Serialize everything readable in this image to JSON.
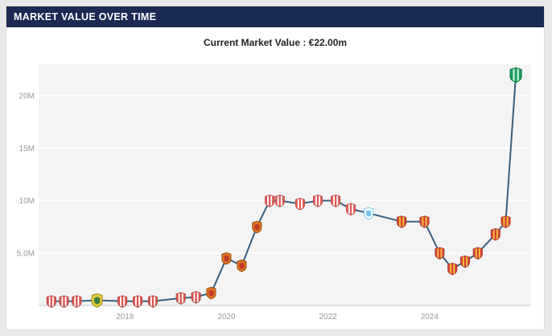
{
  "header": {
    "title": "MARKET VALUE OVER TIME"
  },
  "subtitle": {
    "text": "Current Market Value : €22.00m"
  },
  "colors": {
    "page_bg": "#e9e9e9",
    "panel_bg": "#ffffff",
    "panel_border": "#d9d9d9",
    "header_bg": "#1a2a52",
    "header_text": "#ffffff",
    "subtitle_text": "#222222",
    "tick_text": "#999999",
    "axis_line": "#cbcbcb"
  },
  "chart_data": {
    "type": "line",
    "title": "Market Value Over Time",
    "xlabel": "",
    "ylabel": "",
    "grid": true,
    "legend": "none",
    "xlim": [
      2016.3,
      2026.0
    ],
    "ylim": [
      0,
      23
    ],
    "plot_bg": "#f4f4f4",
    "grid_color": "#ffffff",
    "line_color": "#3a5f7d",
    "y_ticks": [
      {
        "value": 5,
        "label": "5.0M"
      },
      {
        "value": 10,
        "label": "10M"
      },
      {
        "value": 15,
        "label": "15M"
      },
      {
        "value": 20,
        "label": "20M"
      }
    ],
    "x_ticks": [
      {
        "value": 2018,
        "label": "2018"
      },
      {
        "value": 2020,
        "label": "2020"
      },
      {
        "value": 2022,
        "label": "2022"
      },
      {
        "value": 2024,
        "label": "2024"
      }
    ],
    "badge_styles": {
      "sporting": {
        "style": "stripes",
        "primary": "#d9534f",
        "secondary": "#ffffff",
        "outline": "#b54a46"
      },
      "yellow": {
        "style": "solid",
        "primary": "#e7cb3a",
        "secondary": "#3a7d44",
        "outline": "#9b8a20"
      },
      "orange": {
        "style": "solid",
        "primary": "#e0731f",
        "secondary": "#c03a2b",
        "outline": "#8f4a12"
      },
      "red": {
        "style": "stripes",
        "primary": "#e05a55",
        "secondary": "#ffffff",
        "outline": "#c04a46"
      },
      "om": {
        "style": "solid",
        "primary": "#ffffff",
        "secondary": "#6fc3ea",
        "outline": "#6fc3ea"
      },
      "almeria": {
        "style": "stripes",
        "primary": "#d8403c",
        "secondary": "#f2c235",
        "outline": "#a83a30"
      },
      "green": {
        "style": "stripes",
        "primary": "#18a05e",
        "secondary": "#bfe8d2",
        "outline": "#0f7a46"
      }
    },
    "points": [
      {
        "x": 2016.55,
        "value": 0.4,
        "club": "sporting"
      },
      {
        "x": 2016.8,
        "value": 0.4,
        "club": "sporting"
      },
      {
        "x": 2017.05,
        "value": 0.4,
        "club": "sporting"
      },
      {
        "x": 2017.45,
        "value": 0.5,
        "club": "yellow",
        "size": 1.15
      },
      {
        "x": 2017.95,
        "value": 0.4,
        "club": "sporting"
      },
      {
        "x": 2018.25,
        "value": 0.4,
        "club": "sporting"
      },
      {
        "x": 2018.55,
        "value": 0.4,
        "club": "sporting"
      },
      {
        "x": 2019.1,
        "value": 0.7,
        "club": "sporting"
      },
      {
        "x": 2019.4,
        "value": 0.8,
        "club": "sporting"
      },
      {
        "x": 2019.7,
        "value": 1.2,
        "club": "orange"
      },
      {
        "x": 2020.0,
        "value": 4.5,
        "club": "orange"
      },
      {
        "x": 2020.3,
        "value": 3.8,
        "club": "orange"
      },
      {
        "x": 2020.6,
        "value": 7.5,
        "club": "orange"
      },
      {
        "x": 2020.85,
        "value": 10.0,
        "club": "red"
      },
      {
        "x": 2021.05,
        "value": 10.0,
        "club": "red"
      },
      {
        "x": 2021.45,
        "value": 9.7,
        "club": "red"
      },
      {
        "x": 2021.8,
        "value": 10.0,
        "club": "red"
      },
      {
        "x": 2022.15,
        "value": 10.0,
        "club": "red"
      },
      {
        "x": 2022.45,
        "value": 9.2,
        "club": "red"
      },
      {
        "x": 2022.8,
        "value": 8.8,
        "club": "om"
      },
      {
        "x": 2023.45,
        "value": 8.0,
        "club": "almeria"
      },
      {
        "x": 2023.9,
        "value": 8.0,
        "club": "almeria"
      },
      {
        "x": 2024.2,
        "value": 5.0,
        "club": "almeria"
      },
      {
        "x": 2024.45,
        "value": 3.5,
        "club": "almeria"
      },
      {
        "x": 2024.7,
        "value": 4.2,
        "club": "almeria"
      },
      {
        "x": 2024.95,
        "value": 5.0,
        "club": "almeria"
      },
      {
        "x": 2025.3,
        "value": 6.8,
        "club": "almeria"
      },
      {
        "x": 2025.5,
        "value": 8.0,
        "club": "almeria"
      },
      {
        "x": 2025.7,
        "value": 22.0,
        "club": "green",
        "size": 1.25
      }
    ]
  }
}
